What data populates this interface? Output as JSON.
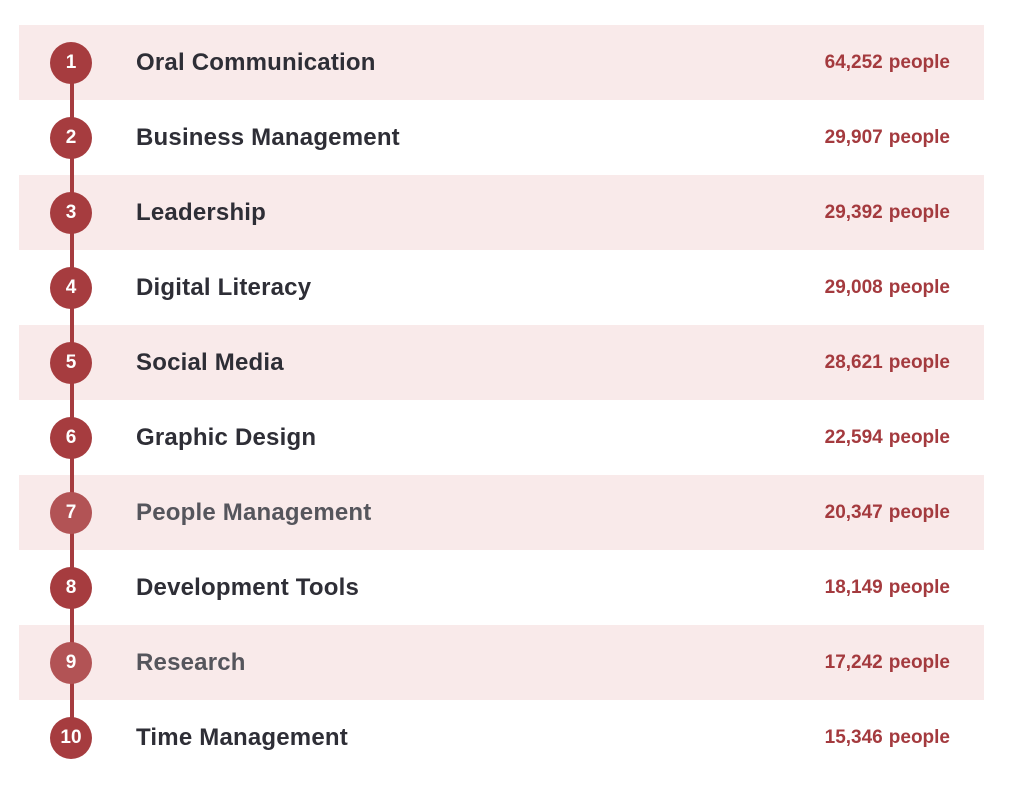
{
  "colors": {
    "accent_red": "#a63c3f",
    "accent_red_muted": "#b25355",
    "row_pink": "#f9eaea",
    "value_text": "#a43a3e",
    "label_dark": "#2e2e36",
    "label_muted": "#55555c",
    "background": "#ffffff"
  },
  "list": {
    "unit_label": "people",
    "items": [
      {
        "rank": "1",
        "label": "Oral Communication",
        "value": "64,252",
        "muted": false
      },
      {
        "rank": "2",
        "label": "Business Management",
        "value": "29,907",
        "muted": false
      },
      {
        "rank": "3",
        "label": "Leadership",
        "value": "29,392",
        "muted": false
      },
      {
        "rank": "4",
        "label": "Digital Literacy",
        "value": "29,008",
        "muted": false
      },
      {
        "rank": "5",
        "label": "Social Media",
        "value": "28,621",
        "muted": false
      },
      {
        "rank": "6",
        "label": "Graphic Design",
        "value": "22,594",
        "muted": false
      },
      {
        "rank": "7",
        "label": "People Management",
        "value": "20,347",
        "muted": true
      },
      {
        "rank": "8",
        "label": "Development Tools",
        "value": "18,149",
        "muted": false
      },
      {
        "rank": "9",
        "label": "Research",
        "value": "17,242",
        "muted": true
      },
      {
        "rank": "10",
        "label": "Time Management",
        "value": "15,346",
        "muted": false
      }
    ]
  },
  "chart_data": {
    "type": "table",
    "title": "",
    "columns": [
      "rank",
      "skill",
      "people"
    ],
    "categories": [
      "Oral Communication",
      "Business Management",
      "Leadership",
      "Digital Literacy",
      "Social Media",
      "Graphic Design",
      "People Management",
      "Development Tools",
      "Research",
      "Time Management"
    ],
    "values": [
      64252,
      29907,
      29392,
      29008,
      28621,
      22594,
      20347,
      18149,
      17242,
      15346
    ],
    "unit": "people",
    "layout": {
      "rows_alternating_highlight": "odd ranks highlighted pink",
      "value_alignment": "right"
    }
  }
}
